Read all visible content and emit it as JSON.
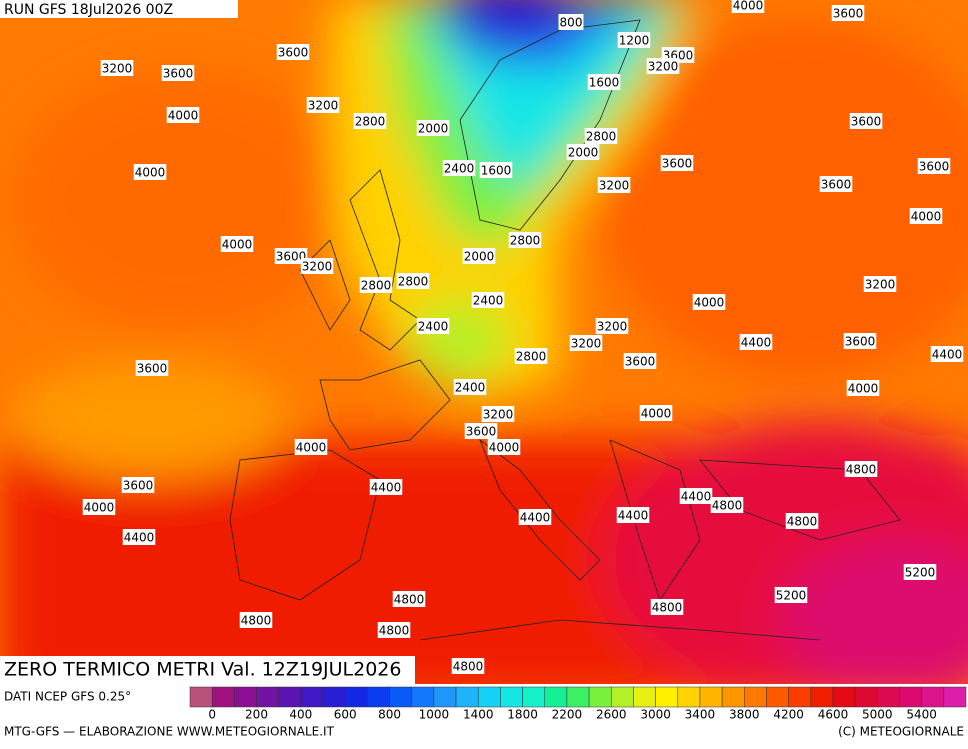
{
  "header": {
    "run": "RUN GFS 18Jul2026 00Z"
  },
  "map": {
    "title": "ZERO TERMICO METRI Val. 12Z19JUL2026",
    "contour_labels": [
      800,
      1200,
      3600,
      3200,
      4000,
      3600,
      3600,
      3200,
      3600,
      1600,
      3200,
      2800,
      2000,
      4000,
      3600,
      2800,
      2000,
      2400,
      1600,
      3600,
      3600,
      4000,
      3200,
      3600,
      4000,
      2800,
      4000,
      3600,
      3200,
      2000,
      2800,
      2800,
      3200,
      2400,
      4000,
      3200,
      2400,
      3200,
      4400,
      3600,
      4400,
      2800,
      3600,
      3600,
      2400,
      4000,
      3200,
      4000,
      3600,
      4000,
      4000,
      4800,
      4400,
      3600,
      4400,
      4800,
      4000,
      4400,
      4400,
      4800,
      4400,
      5200,
      5200,
      4800,
      4800,
      4800,
      4800,
      4800
    ]
  },
  "colorbar": {
    "source": "DATI NCEP GFS 0.25°",
    "colors": [
      "#b8527a",
      "#a0127e",
      "#8a0f92",
      "#7412a4",
      "#5a14b4",
      "#4018c4",
      "#2a1ed4",
      "#1428e4",
      "#0a3cf0",
      "#0a5af5",
      "#1478fa",
      "#1e96fa",
      "#1eb4fa",
      "#14d2f5",
      "#14e6e6",
      "#14f0c8",
      "#14f096",
      "#3cf064",
      "#78f03c",
      "#b4f028",
      "#e6f014",
      "#fff000",
      "#ffd200",
      "#ffb400",
      "#ff9600",
      "#ff7800",
      "#ff5a00",
      "#ff3c00",
      "#f01e00",
      "#e60a14",
      "#dc0a32",
      "#dc0a50",
      "#dc0a6e",
      "#dc148c",
      "#dc1eaa"
    ],
    "ticks": [
      0,
      200,
      400,
      600,
      800,
      1000,
      1400,
      1800,
      2200,
      2600,
      3000,
      3400,
      3800,
      4200,
      4600,
      5000,
      5400
    ]
  },
  "footer": {
    "left": "MTG-GFS — ELABORAZIONE WWW.METEOGIORNALE.IT",
    "right": "(C) METEOGIORNALE"
  }
}
